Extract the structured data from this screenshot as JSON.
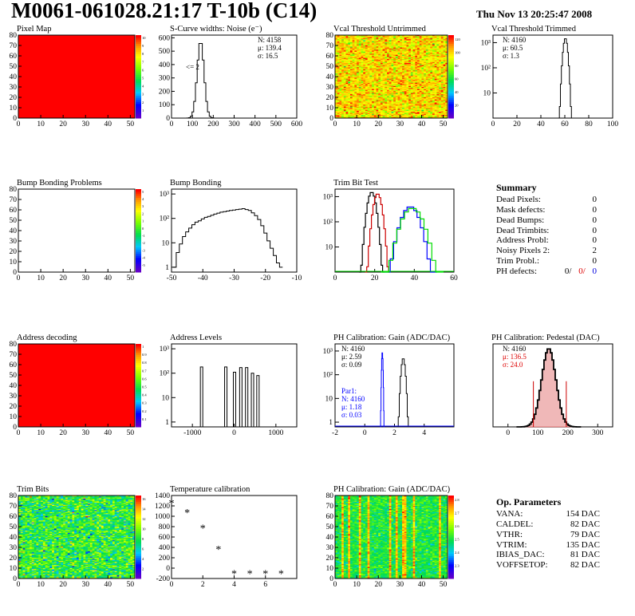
{
  "header": {
    "title": "M0061-061028.21:17 T-10b (C14)",
    "date": "Thu Nov 13 20:25:47 2008"
  },
  "colors": {
    "summary_red": "#dd0000",
    "summary_blue": "#0000dd",
    "trim_bit_green": "#00dd00",
    "trim_bit_blue": "#0000ff",
    "trim_bit_red": "#cc0000",
    "ph_gain_par1": "#0000ff",
    "ph_pedestal_fill": "#dd3333"
  },
  "summary": {
    "title": "Summary",
    "rows": [
      {
        "label": "Dead Pixels:",
        "value": "0"
      },
      {
        "label": "Mask defects:",
        "value": "0"
      },
      {
        "label": "Dead Bumps:",
        "value": "0"
      },
      {
        "label": "Dead Trimbits:",
        "value": "0"
      },
      {
        "label": "Address Probl:",
        "value": "0"
      },
      {
        "label": "Noisy Pixels 2:",
        "value": "2"
      },
      {
        "label": "Trim Probl.:",
        "value": "0"
      }
    ],
    "ph_defects": {
      "label": "PH defects:",
      "v1": "0/",
      "v2": "0/",
      "v3": "0"
    }
  },
  "op_parameters": {
    "title": "Op. Parameters",
    "rows": [
      {
        "label": "VANA:",
        "value": "154 DAC"
      },
      {
        "label": "CALDEL:",
        "value": "82 DAC"
      },
      {
        "label": "VTHR:",
        "value": "79 DAC"
      },
      {
        "label": "VTRIM:",
        "value": "135 DAC"
      },
      {
        "label": "IBIAS_DAC:",
        "value": "81 DAC"
      },
      {
        "label": "VOFFSETOP:",
        "value": "82 DAC"
      }
    ]
  },
  "chart_data": [
    {
      "id": "pixel_map",
      "type": "heatmap",
      "title": "Pixel Map",
      "xlim": [
        0,
        52
      ],
      "ylim": [
        0,
        80
      ],
      "xticks": [
        "0",
        "10",
        "20",
        "30",
        "40",
        "50"
      ],
      "yticks": [
        "0",
        "10",
        "20",
        "30",
        "40",
        "50",
        "60",
        "70",
        "80"
      ],
      "fill": "uniform",
      "value": 10,
      "zticks": [
        "1",
        "2",
        "3",
        "4",
        "5",
        "6",
        "7",
        "8",
        "9",
        "10"
      ],
      "palette_shown": "full"
    },
    {
      "id": "scurve",
      "type": "line",
      "title": "S-Curve widths: Noise (e⁻)",
      "xlim": [
        0,
        600
      ],
      "ylim": [
        0,
        620
      ],
      "xticks": [
        "0",
        "100",
        "200",
        "300",
        "400",
        "500",
        "600"
      ],
      "yticks": [
        "0",
        "100",
        "200",
        "300",
        "400",
        "500",
        "600"
      ],
      "stats": [
        "N: 4158",
        "μ: 139.4",
        "σ: 16.5"
      ],
      "annotation": "<= 2",
      "gauss": {
        "mean": 139.4,
        "sigma": 16.5,
        "peak": 575
      }
    },
    {
      "id": "vcal_untrimmed",
      "type": "heatmap",
      "title": "Vcal Threshold Untrimmed",
      "xlim": [
        0,
        52
      ],
      "ylim": [
        0,
        80
      ],
      "xticks": [
        "0",
        "10",
        "20",
        "30",
        "40",
        "50"
      ],
      "yticks": [
        "0",
        "10",
        "20",
        "30",
        "40",
        "50",
        "60",
        "70",
        "80"
      ],
      "fill": "noise_orange",
      "zmin": 0,
      "zmax": 130,
      "zticks": [
        "20",
        "40",
        "60",
        "80",
        "100",
        "120"
      ]
    },
    {
      "id": "vcal_trimmed",
      "type": "line",
      "title": "Vcal Threshold Trimmed",
      "xlim": [
        0,
        100
      ],
      "log": true,
      "ylim_log": [
        0,
        3.3
      ],
      "xticks": [
        "0",
        "20",
        "40",
        "60",
        "80",
        "100"
      ],
      "yticks_log": [
        "10",
        "10²",
        "10³"
      ],
      "stats": [
        "N: 4160",
        "μ: 60.5",
        "σ:  1.3"
      ],
      "gauss": {
        "mean": 60.5,
        "sigma": 1.3,
        "peak": 1500
      }
    },
    {
      "id": "bump_map",
      "type": "heatmap",
      "title": "Bump Bonding Problems",
      "xlim": [
        0,
        52
      ],
      "ylim": [
        0,
        80
      ],
      "xticks": [
        "0",
        "10",
        "20",
        "30",
        "40",
        "50"
      ],
      "yticks": [
        "0",
        "10",
        "20",
        "30",
        "40",
        "50",
        "60",
        "70",
        "80"
      ],
      "fill": "empty",
      "zticks": [
        "-5",
        "-4",
        "-3",
        "-2",
        "-1",
        "0",
        "1",
        "2",
        "3",
        "4",
        "5"
      ],
      "palette_shown": "full"
    },
    {
      "id": "bump_bonding",
      "type": "line",
      "title": "Bump Bonding",
      "xlim": [
        -50,
        -10
      ],
      "log": true,
      "ylim_log": [
        -0.2,
        3.2
      ],
      "xticks": [
        "-50",
        "-40",
        "-30",
        "-20",
        "-10"
      ],
      "yticks_log": [
        "1",
        "10",
        "10²",
        "10³"
      ],
      "profile": [
        [
          -49,
          1
        ],
        [
          -48,
          4
        ],
        [
          -47,
          9
        ],
        [
          -46,
          18
        ],
        [
          -45,
          28
        ],
        [
          -44,
          40
        ],
        [
          -43,
          55
        ],
        [
          -42,
          70
        ],
        [
          -41,
          80
        ],
        [
          -40,
          95
        ],
        [
          -39,
          110
        ],
        [
          -38,
          120
        ],
        [
          -37,
          135
        ],
        [
          -36,
          150
        ],
        [
          -35,
          165
        ],
        [
          -34,
          180
        ],
        [
          -33,
          190
        ],
        [
          -32,
          200
        ],
        [
          -31,
          210
        ],
        [
          -30,
          220
        ],
        [
          -29,
          230
        ],
        [
          -28,
          240
        ],
        [
          -27,
          250
        ],
        [
          -26,
          230
        ],
        [
          -25,
          210
        ],
        [
          -24,
          170
        ],
        [
          -23,
          130
        ],
        [
          -22,
          90
        ],
        [
          -21,
          50
        ],
        [
          -20,
          25
        ],
        [
          -19,
          12
        ],
        [
          -18,
          6
        ],
        [
          -17,
          3
        ],
        [
          -16,
          1.5
        ],
        [
          -15,
          1
        ]
      ]
    },
    {
      "id": "trim_bit_test",
      "type": "line",
      "title": "Trim Bit Test",
      "xlim": [
        0,
        60
      ],
      "log": true,
      "ylim_log": [
        0,
        3.3
      ],
      "xticks": [
        "0",
        "20",
        "40",
        "60"
      ],
      "yticks_log": [
        "10",
        "10²",
        "10³"
      ],
      "series": [
        {
          "color": "#000000",
          "mean": 18.5,
          "sigma": 1.4,
          "peak": 1500
        },
        {
          "color": "#cc0000",
          "mean": 21.5,
          "sigma": 1.4,
          "peak": 1300
        },
        {
          "color": "#0000ff",
          "mean": 38.0,
          "sigma": 3.0,
          "peak": 400
        },
        {
          "color": "#00dd00",
          "mean": 39.0,
          "sigma": 3.5,
          "peak": 350
        }
      ]
    },
    {
      "id": "address_map",
      "type": "heatmap",
      "title": "Address decoding",
      "xlim": [
        0,
        52
      ],
      "ylim": [
        0,
        80
      ],
      "xticks": [
        "0",
        "10",
        "20",
        "30",
        "40",
        "50"
      ],
      "yticks": [
        "0",
        "10",
        "20",
        "30",
        "40",
        "50",
        "60",
        "70",
        "80"
      ],
      "fill": "uniform",
      "value": 1,
      "zticks": [
        "0.1",
        "0.2",
        "0.3",
        "0.4",
        "0.5",
        "0.6",
        "0.7",
        "0.8",
        "0.9",
        "1"
      ],
      "palette_shown": "full"
    },
    {
      "id": "address_levels",
      "type": "line",
      "title": "Address Levels",
      "xlim": [
        -1500,
        1500
      ],
      "log": true,
      "ylim_log": [
        -0.2,
        3.2
      ],
      "xticks": [
        "-1000",
        "0",
        "1000"
      ],
      "yticks_log": [
        "1",
        "10",
        "10²",
        "10³"
      ],
      "spikes": [
        {
          "x": -780,
          "h": 180
        },
        {
          "x": -200,
          "h": 180
        },
        {
          "x": 10,
          "h": 110
        },
        {
          "x": 160,
          "h": 170
        },
        {
          "x": 300,
          "h": 170
        },
        {
          "x": 440,
          "h": 100
        },
        {
          "x": 570,
          "h": 80
        }
      ]
    },
    {
      "id": "ph_gain",
      "type": "line",
      "title": "PH Calibration: Gain (ADC/DAC)",
      "xlim": [
        -2,
        6
      ],
      "log": true,
      "ylim_log": [
        -0.2,
        3.3
      ],
      "xticks": [
        "-2",
        "0",
        "2",
        "4"
      ],
      "yticks_log": [
        "1",
        "10",
        "10²",
        "10³"
      ],
      "stats": [
        "N: 4160",
        "μ: 2.59",
        "σ: 0.09"
      ],
      "par1": [
        "Par1:",
        "N: 4160",
        "μ: 1.18",
        "σ: 0.03"
      ],
      "series": [
        {
          "color": "#000000",
          "mean": 2.59,
          "sigma": 0.09,
          "peak": 500
        },
        {
          "color": "#0000ff",
          "mean": 1.18,
          "sigma": 0.03,
          "peak": 900
        }
      ]
    },
    {
      "id": "ph_pedestal",
      "type": "line",
      "title": "PH Calibration: Pedestal (DAC)",
      "xlim": [
        -50,
        350
      ],
      "ylim": [
        0,
        90
      ],
      "xticks": [
        "0",
        "100",
        "200",
        "300"
      ],
      "yticks": [],
      "stats": [
        "N: 4160",
        "μ: 136.5",
        "σ: 24.0"
      ],
      "gauss": {
        "mean": 136.5,
        "sigma": 24.0,
        "peak": 85
      },
      "markers": [
        85,
        195
      ]
    },
    {
      "id": "trim_bits",
      "type": "heatmap",
      "title": "Trim Bits",
      "xlim": [
        0,
        52
      ],
      "ylim": [
        0,
        80
      ],
      "xticks": [
        "0",
        "10",
        "20",
        "30",
        "40",
        "50"
      ],
      "yticks": [
        "0",
        "10",
        "20",
        "30",
        "40",
        "50",
        "60",
        "70",
        "80"
      ],
      "fill": "noise_green",
      "zmin": 0,
      "zmax": 16,
      "zticks": [
        "2",
        "4",
        "6",
        "8",
        "10",
        "12",
        "14",
        "16"
      ]
    },
    {
      "id": "temperature",
      "type": "scatter",
      "title": "Temperature calibration",
      "xlim": [
        0,
        8
      ],
      "ylim": [
        -200,
        1400
      ],
      "xticks": [
        "0",
        "2",
        "4",
        "6"
      ],
      "yticks": [
        "-200",
        "0",
        "200",
        "400",
        "600",
        "800",
        "1000",
        "1200",
        "1400"
      ],
      "points": [
        [
          0,
          1260
        ],
        [
          1,
          1080
        ],
        [
          2,
          780
        ],
        [
          3,
          370
        ],
        [
          4,
          -100
        ],
        [
          5,
          -100
        ],
        [
          6,
          -100
        ],
        [
          7,
          -100
        ]
      ]
    },
    {
      "id": "ph_gain_map",
      "type": "heatmap",
      "title": "PH Calibration: Gain (ADC/DAC)",
      "xlim": [
        0,
        52
      ],
      "ylim": [
        0,
        80
      ],
      "xticks": [
        "0",
        "10",
        "20",
        "30",
        "40",
        "50"
      ],
      "yticks": [
        "0",
        "10",
        "20",
        "30",
        "40",
        "50",
        "60",
        "70",
        "80"
      ],
      "fill": "columns_green",
      "zmin": 2.2,
      "zmax": 2.8,
      "zticks": [
        "2.3",
        "2.4",
        "2.5",
        "2.6",
        "2.7",
        "2.8"
      ]
    }
  ]
}
